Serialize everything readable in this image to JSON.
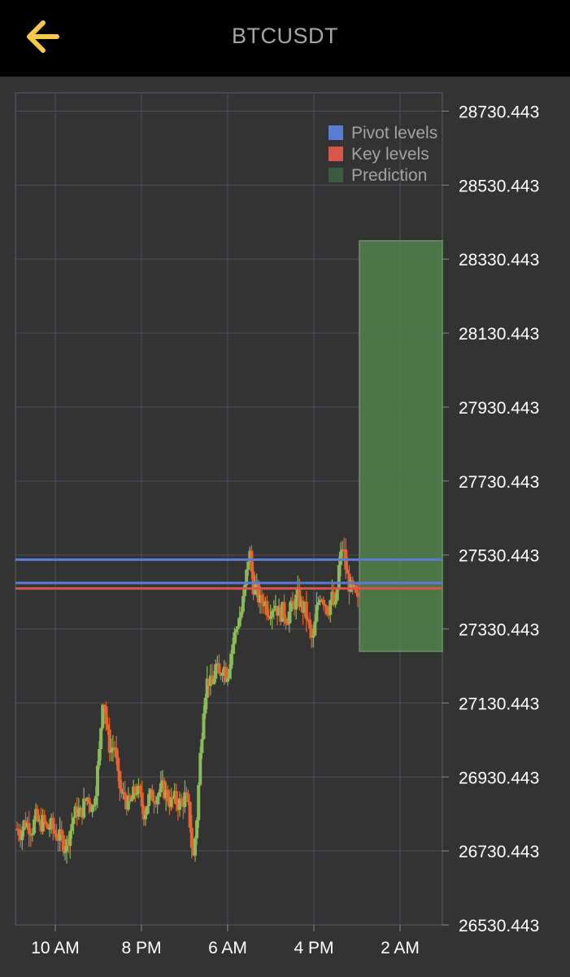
{
  "header": {
    "title": "BTCUSDT",
    "back_icon": "arrow-left-icon"
  },
  "colors": {
    "background": "#333333",
    "header": "#000000",
    "back_arrow": "#f2c94c",
    "grid": "#4f4f5e",
    "tick_text": "#ffffff",
    "pivot": "#5b7bd6",
    "key": "#d9564a",
    "prediction": "#4f7d4a",
    "candle_up": "#8bb85a",
    "candle_down": "#e8622e"
  },
  "chart_data": {
    "type": "candlestick",
    "title": "",
    "xlabel": "",
    "ylabel": "",
    "ylim": [
      26530.443,
      28780
    ],
    "y_ticks": [
      "28730.443",
      "28530.443",
      "28330.443",
      "28130.443",
      "27930.443",
      "27730.443",
      "27530.443",
      "27330.443",
      "27130.443",
      "26930.443",
      "26730.443",
      "26530.443"
    ],
    "x_tick_labels": [
      "10 AM",
      "8 PM",
      "6 AM",
      "4 PM",
      "2 AM"
    ],
    "grid": true,
    "legend_position": "top-right",
    "legend": [
      {
        "name": "Pivot levels",
        "color": "#5b7bd6"
      },
      {
        "name": "Key levels",
        "color": "#d9564a"
      },
      {
        "name": "Prediction",
        "color": "#3b5a3f"
      }
    ],
    "pivot_levels": [
      27518,
      27455
    ],
    "key_levels": [
      27440
    ],
    "prediction_zone": {
      "low": 27270,
      "high": 28380
    },
    "price_path": [
      26790,
      26780,
      26810,
      26800,
      26790,
      26820,
      26800,
      26810,
      26790,
      26800,
      26780,
      26770,
      26760,
      26740,
      26780,
      26820,
      26840,
      26830,
      26860,
      26880,
      26840,
      26900,
      27000,
      27170,
      27050,
      27000,
      27020,
      26920,
      26880,
      26870,
      26850,
      26880,
      26900,
      26870,
      26830,
      26870,
      26880,
      26880,
      26890,
      26900,
      26880,
      26860,
      26870,
      26860,
      26860,
      26880,
      26830,
      26700,
      26820,
      27000,
      27150,
      27200,
      27170,
      27230,
      27200,
      27240,
      27200,
      27260,
      27310,
      27350,
      27380,
      27450,
      27550,
      27450,
      27430,
      27400,
      27410,
      27380,
      27390,
      27400,
      27370,
      27380,
      27360,
      27380,
      27400,
      27420,
      27390,
      27380,
      27330,
      27290,
      27380,
      27430,
      27410,
      27380,
      27420,
      27380,
      27500,
      27560,
      27480,
      27440,
      27430,
      27400
    ]
  }
}
